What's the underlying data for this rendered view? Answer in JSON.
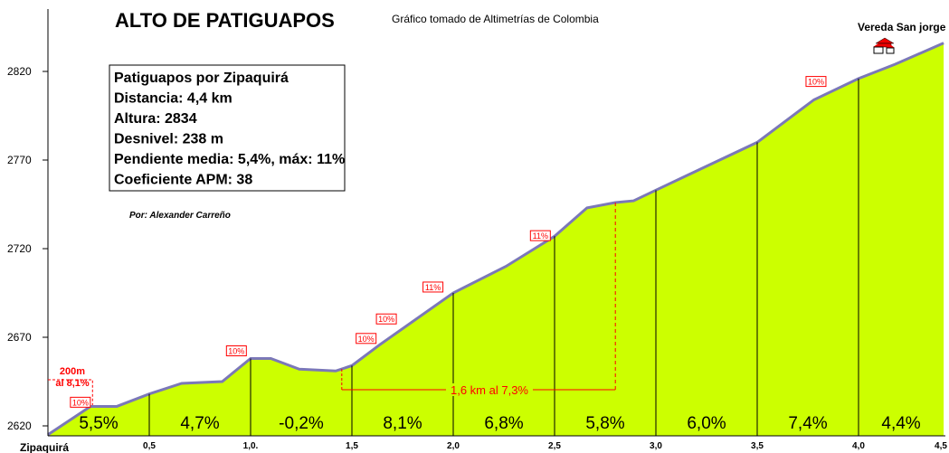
{
  "chart_data": {
    "type": "area",
    "title": "ALTO DE PATIGUAPOS",
    "subtitle": "Gráfico tomado de Altimetrías de Colombia",
    "xlabel": "",
    "ylabel": "",
    "xlim": [
      0,
      4.5
    ],
    "ylim": [
      2615,
      2840
    ],
    "x_ticks": [
      0.5,
      1.0,
      1.5,
      2.0,
      2.5,
      3.0,
      3.5,
      4.0,
      4.5
    ],
    "x_tick_labels": [
      "0,5",
      "1,0.",
      "1,5",
      "2,0",
      "2,5",
      "3,0",
      "3,5",
      "4,0",
      "4,5"
    ],
    "y_ticks": [
      2620,
      2670,
      2720,
      2770,
      2820
    ],
    "y_tick_labels": [
      "2620",
      "2670",
      "2720",
      "2770",
      "2820"
    ],
    "start_label": "Zipaquirá",
    "end_label": "Vereda San jorge",
    "profile": {
      "x": [
        0,
        0.21,
        0.34,
        0.5,
        0.66,
        0.86,
        1.0,
        1.1,
        1.24,
        1.42,
        1.5,
        1.64,
        2.0,
        2.26,
        2.5,
        2.66,
        2.8,
        2.89,
        3.0,
        3.24,
        3.5,
        3.78,
        4.0,
        4.18,
        4.42
      ],
      "y": [
        2615,
        2631,
        2631,
        2638,
        2644,
        2645,
        2658,
        2658,
        2652,
        2651,
        2654,
        2666,
        2695,
        2710,
        2727,
        2743,
        2746,
        2747,
        2753,
        2766,
        2780,
        2804,
        2816,
        2824,
        2836
      ]
    },
    "segments": [
      {
        "from": 0,
        "to": 0.5,
        "label": "5,5%"
      },
      {
        "from": 0.5,
        "to": 1.0,
        "label": "4,7%"
      },
      {
        "from": 1.0,
        "to": 1.5,
        "label": "-0,2%"
      },
      {
        "from": 1.5,
        "to": 2.0,
        "label": "8,1%"
      },
      {
        "from": 2.0,
        "to": 2.5,
        "label": "6,8%"
      },
      {
        "from": 2.5,
        "to": 3.0,
        "label": "5,8%"
      },
      {
        "from": 3.0,
        "to": 3.5,
        "label": "6,0%"
      },
      {
        "from": 3.5,
        "to": 4.0,
        "label": "7,4%"
      },
      {
        "from": 4.0,
        "to": 4.42,
        "label": "4,4%"
      }
    ],
    "max_grade_marks": [
      {
        "x": 0.16,
        "y": 2629,
        "label": "10%"
      },
      {
        "x": 0.93,
        "y": 2658,
        "label": "10%"
      },
      {
        "x": 1.57,
        "y": 2665,
        "label": "10%"
      },
      {
        "x": 1.67,
        "y": 2676,
        "label": "10%"
      },
      {
        "x": 1.9,
        "y": 2694,
        "label": "11%"
      },
      {
        "x": 2.43,
        "y": 2723,
        "label": "11%"
      },
      {
        "x": 3.79,
        "y": 2810,
        "label": "10%"
      }
    ],
    "annotations": [
      {
        "label_lines": [
          "200m",
          "al 8,1%"
        ],
        "from": 0,
        "to": 0.22
      },
      {
        "label": "1,6 km al 7,3%",
        "from": 1.45,
        "to": 2.8
      }
    ],
    "info_box": [
      "Patiguapos por Zipaquirá",
      "Distancia: 4,4 km",
      "Altura: 2834",
      "Desnivel: 238 m",
      "Pendiente media: 5,4%, máx: 11%",
      "Coeficiente APM: 38"
    ],
    "credit": "Por: Alexander Carreño",
    "colors": {
      "fill": "#ccff00",
      "outline": "#7b78b8",
      "marks": "#ff0000",
      "text": "#000000"
    }
  }
}
